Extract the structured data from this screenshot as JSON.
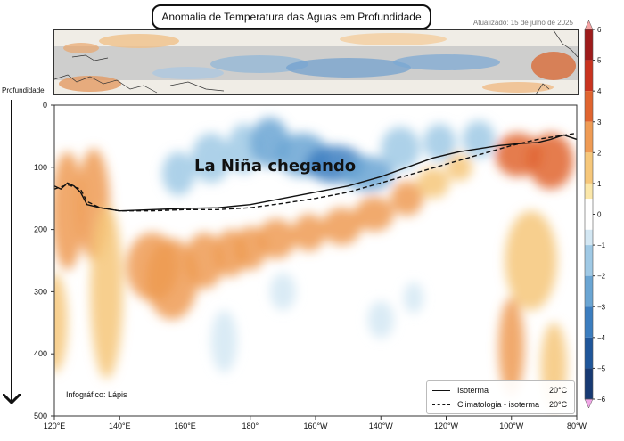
{
  "header": {
    "title": "Anomalia de Temperatura das Aguas em Profundidade",
    "updated": "Atualizado: 15 de julho de 2025"
  },
  "annotation": "La Niña chegando",
  "credit": "Infográfico: Lápis",
  "legend": {
    "items": [
      {
        "label": "Isoterma",
        "value": "20°C",
        "style": "solid"
      },
      {
        "label": "Climatologia - isoterma",
        "value": "20°C",
        "style": "dashed"
      }
    ]
  },
  "colors": {
    "line": "#111111",
    "warm": "#c9331f",
    "cool": "#2f6bb0"
  },
  "chart_data": {
    "type": "heatmap",
    "title": "Anomalia de Temperatura das Aguas em Profundidade",
    "ylabel": "Profundidade",
    "x_domain": [
      120,
      280
    ],
    "x_unit": "longitude (degrees east)",
    "x_ticks": [
      {
        "value": 120,
        "label": "120°E"
      },
      {
        "value": 140,
        "label": "140°E"
      },
      {
        "value": 160,
        "label": "160°E"
      },
      {
        "value": 180,
        "label": "180°"
      },
      {
        "value": 200,
        "label": "160°W"
      },
      {
        "value": 220,
        "label": "140°W"
      },
      {
        "value": 240,
        "label": "120°W"
      },
      {
        "value": 260,
        "label": "100°W"
      },
      {
        "value": 280,
        "label": "80°W"
      }
    ],
    "y_domain": [
      0,
      500
    ],
    "y_ticks": [
      0,
      100,
      200,
      300,
      400,
      500
    ],
    "colorbar": {
      "range": [
        -6,
        6
      ],
      "ticks": [
        6,
        5,
        4,
        3,
        2,
        1,
        0,
        -1,
        -2,
        -3,
        -4,
        -5,
        -6
      ]
    },
    "anomaly_blobs": [
      {
        "lon": 124,
        "depth": 170,
        "lon_w": 5,
        "depth_h": 95,
        "value": 2.5
      },
      {
        "lon": 132,
        "depth": 160,
        "lon_w": 5,
        "depth_h": 90,
        "value": 2.3
      },
      {
        "lon": 120,
        "depth": 350,
        "lon_w": 4,
        "depth_h": 80,
        "value": 1.2
      },
      {
        "lon": 136,
        "depth": 300,
        "lon_w": 5,
        "depth_h": 140,
        "value": 1.4
      },
      {
        "lon": 150,
        "depth": 260,
        "lon_w": 8,
        "depth_h": 55,
        "value": 3.0
      },
      {
        "lon": 156,
        "depth": 280,
        "lon_w": 8,
        "depth_h": 65,
        "value": 2.6
      },
      {
        "lon": 166,
        "depth": 250,
        "lon_w": 6,
        "depth_h": 45,
        "value": 2.6
      },
      {
        "lon": 174,
        "depth": 238,
        "lon_w": 5,
        "depth_h": 38,
        "value": 2.7
      },
      {
        "lon": 180,
        "depth": 230,
        "lon_w": 5,
        "depth_h": 35,
        "value": 2.6
      },
      {
        "lon": 188,
        "depth": 215,
        "lon_w": 6,
        "depth_h": 32,
        "value": 2.4
      },
      {
        "lon": 198,
        "depth": 205,
        "lon_w": 5,
        "depth_h": 30,
        "value": 2.3
      },
      {
        "lon": 208,
        "depth": 195,
        "lon_w": 6,
        "depth_h": 30,
        "value": 2.5
      },
      {
        "lon": 218,
        "depth": 175,
        "lon_w": 6,
        "depth_h": 28,
        "value": 2.5
      },
      {
        "lon": 228,
        "depth": 150,
        "lon_w": 5,
        "depth_h": 28,
        "value": 2.3
      },
      {
        "lon": 236,
        "depth": 125,
        "lon_w": 5,
        "depth_h": 25,
        "value": 2.1
      },
      {
        "lon": 244,
        "depth": 100,
        "lon_w": 4,
        "depth_h": 22,
        "value": 1.5
      },
      {
        "lon": 262,
        "depth": 80,
        "lon_w": 7,
        "depth_h": 35,
        "value": 4.0
      },
      {
        "lon": 272,
        "depth": 90,
        "lon_w": 7,
        "depth_h": 45,
        "value": 3.5
      },
      {
        "lon": 266,
        "depth": 250,
        "lon_w": 8,
        "depth_h": 80,
        "value": 1.3
      },
      {
        "lon": 260,
        "depth": 390,
        "lon_w": 4,
        "depth_h": 80,
        "value": 2.2
      },
      {
        "lon": 273,
        "depth": 420,
        "lon_w": 4,
        "depth_h": 70,
        "value": 2.0
      },
      {
        "lon": 158,
        "depth": 110,
        "lon_w": 5,
        "depth_h": 35,
        "value": -1.5
      },
      {
        "lon": 168,
        "depth": 85,
        "lon_w": 6,
        "depth_h": 40,
        "value": -1.8
      },
      {
        "lon": 178,
        "depth": 70,
        "lon_w": 5,
        "depth_h": 40,
        "value": -2.0
      },
      {
        "lon": 186,
        "depth": 60,
        "lon_w": 6,
        "depth_h": 40,
        "value": -2.2
      },
      {
        "lon": 196,
        "depth": 80,
        "lon_w": 8,
        "depth_h": 35,
        "value": -2.8
      },
      {
        "lon": 206,
        "depth": 95,
        "lon_w": 9,
        "depth_h": 30,
        "value": -3.3
      },
      {
        "lon": 216,
        "depth": 110,
        "lon_w": 8,
        "depth_h": 28,
        "value": -3.0
      },
      {
        "lon": 226,
        "depth": 70,
        "lon_w": 6,
        "depth_h": 35,
        "value": -2.0
      },
      {
        "lon": 238,
        "depth": 60,
        "lon_w": 5,
        "depth_h": 30,
        "value": -1.3
      },
      {
        "lon": 250,
        "depth": 55,
        "lon_w": 5,
        "depth_h": 30,
        "value": -1.2
      },
      {
        "lon": 172,
        "depth": 380,
        "lon_w": 4,
        "depth_h": 50,
        "value": -0.8
      },
      {
        "lon": 190,
        "depth": 300,
        "lon_w": 4,
        "depth_h": 30,
        "value": -0.7
      },
      {
        "lon": 220,
        "depth": 345,
        "lon_w": 4,
        "depth_h": 30,
        "value": -0.9
      },
      {
        "lon": 230,
        "depth": 310,
        "lon_w": 3,
        "depth_h": 25,
        "value": -0.8
      }
    ],
    "series": [
      {
        "name": "Isoterma 20°C",
        "style": "solid",
        "lon": [
          120,
          122,
          124,
          126,
          128,
          130,
          134,
          140,
          150,
          160,
          170,
          180,
          190,
          200,
          210,
          220,
          228,
          236,
          244,
          250,
          256,
          262,
          268,
          272,
          276,
          280
        ],
        "depth": [
          130,
          135,
          125,
          130,
          140,
          160,
          165,
          170,
          168,
          166,
          165,
          160,
          150,
          140,
          130,
          115,
          100,
          85,
          75,
          70,
          65,
          62,
          60,
          55,
          48,
          55
        ]
      },
      {
        "name": "Climatologia - isoterma 20°C",
        "style": "dashed",
        "lon": [
          120,
          124,
          128,
          130,
          134,
          140,
          150,
          160,
          170,
          180,
          190,
          200,
          210,
          220,
          230,
          240,
          250,
          260,
          268,
          274,
          280
        ],
        "depth": [
          135,
          128,
          135,
          155,
          165,
          170,
          170,
          168,
          168,
          165,
          158,
          150,
          140,
          125,
          110,
          95,
          80,
          65,
          55,
          50,
          45
        ]
      }
    ]
  }
}
